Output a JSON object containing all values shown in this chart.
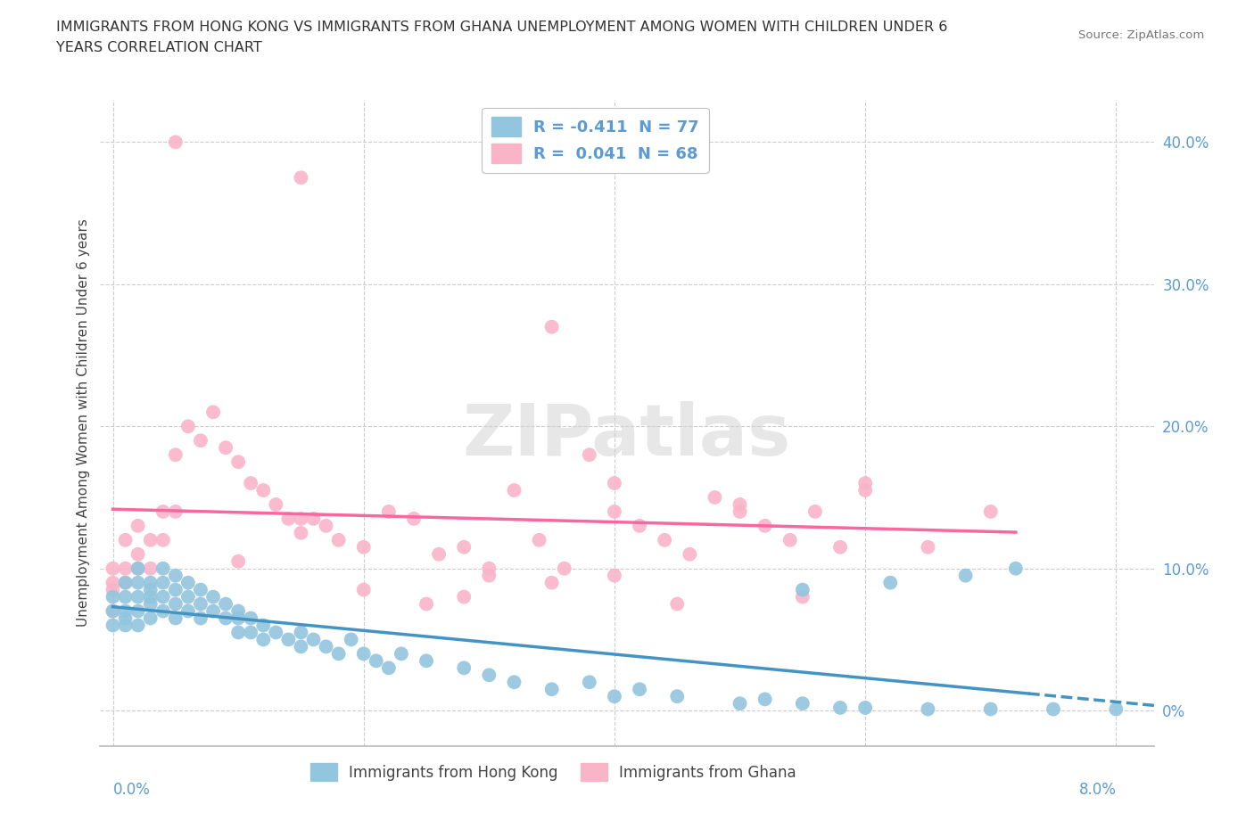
{
  "title_line1": "IMMIGRANTS FROM HONG KONG VS IMMIGRANTS FROM GHANA UNEMPLOYMENT AMONG WOMEN WITH CHILDREN UNDER 6",
  "title_line2": "YEARS CORRELATION CHART",
  "source": "Source: ZipAtlas.com",
  "ylabel": "Unemployment Among Women with Children Under 6 years",
  "color_hk": "#92c5de",
  "color_ghana": "#f9b4c8",
  "line_color_hk": "#4393c3",
  "line_color_ghana": "#f768a1",
  "r_hk": -0.411,
  "n_hk": 77,
  "r_ghana": 0.041,
  "n_ghana": 68,
  "hk_x": [
    0.0,
    0.0,
    0.0,
    0.001,
    0.001,
    0.001,
    0.001,
    0.001,
    0.002,
    0.002,
    0.002,
    0.002,
    0.002,
    0.003,
    0.003,
    0.003,
    0.003,
    0.003,
    0.004,
    0.004,
    0.004,
    0.004,
    0.005,
    0.005,
    0.005,
    0.005,
    0.006,
    0.006,
    0.006,
    0.007,
    0.007,
    0.007,
    0.008,
    0.008,
    0.009,
    0.009,
    0.01,
    0.01,
    0.01,
    0.011,
    0.011,
    0.012,
    0.012,
    0.013,
    0.014,
    0.015,
    0.015,
    0.016,
    0.017,
    0.018,
    0.019,
    0.02,
    0.021,
    0.022,
    0.023,
    0.025,
    0.028,
    0.03,
    0.032,
    0.035,
    0.038,
    0.04,
    0.042,
    0.045,
    0.05,
    0.052,
    0.055,
    0.058,
    0.06,
    0.065,
    0.07,
    0.075,
    0.08,
    0.055,
    0.062,
    0.068,
    0.072
  ],
  "hk_y": [
    0.08,
    0.07,
    0.06,
    0.09,
    0.08,
    0.07,
    0.065,
    0.06,
    0.1,
    0.09,
    0.08,
    0.07,
    0.06,
    0.09,
    0.085,
    0.08,
    0.075,
    0.065,
    0.1,
    0.09,
    0.08,
    0.07,
    0.095,
    0.085,
    0.075,
    0.065,
    0.09,
    0.08,
    0.07,
    0.085,
    0.075,
    0.065,
    0.08,
    0.07,
    0.075,
    0.065,
    0.07,
    0.065,
    0.055,
    0.065,
    0.055,
    0.06,
    0.05,
    0.055,
    0.05,
    0.045,
    0.055,
    0.05,
    0.045,
    0.04,
    0.05,
    0.04,
    0.035,
    0.03,
    0.04,
    0.035,
    0.03,
    0.025,
    0.02,
    0.015,
    0.02,
    0.01,
    0.015,
    0.01,
    0.005,
    0.008,
    0.005,
    0.002,
    0.002,
    0.001,
    0.001,
    0.001,
    0.001,
    0.085,
    0.09,
    0.095,
    0.1
  ],
  "ghana_x": [
    0.0,
    0.0,
    0.0,
    0.0,
    0.001,
    0.001,
    0.001,
    0.002,
    0.002,
    0.002,
    0.003,
    0.003,
    0.004,
    0.004,
    0.005,
    0.005,
    0.006,
    0.007,
    0.008,
    0.009,
    0.01,
    0.011,
    0.012,
    0.013,
    0.014,
    0.015,
    0.016,
    0.017,
    0.018,
    0.02,
    0.022,
    0.024,
    0.026,
    0.028,
    0.03,
    0.032,
    0.034,
    0.036,
    0.038,
    0.04,
    0.042,
    0.044,
    0.046,
    0.048,
    0.05,
    0.052,
    0.054,
    0.056,
    0.058,
    0.06,
    0.035,
    0.028,
    0.04,
    0.015,
    0.01,
    0.02,
    0.025,
    0.03,
    0.04,
    0.05,
    0.06,
    0.065,
    0.07,
    0.055,
    0.045,
    0.035,
    0.015,
    0.005
  ],
  "ghana_y": [
    0.1,
    0.09,
    0.085,
    0.07,
    0.12,
    0.1,
    0.09,
    0.13,
    0.11,
    0.1,
    0.12,
    0.1,
    0.14,
    0.12,
    0.18,
    0.14,
    0.2,
    0.19,
    0.21,
    0.185,
    0.175,
    0.16,
    0.155,
    0.145,
    0.135,
    0.125,
    0.135,
    0.13,
    0.12,
    0.115,
    0.14,
    0.135,
    0.11,
    0.115,
    0.1,
    0.155,
    0.12,
    0.1,
    0.18,
    0.14,
    0.13,
    0.12,
    0.11,
    0.15,
    0.145,
    0.13,
    0.12,
    0.14,
    0.115,
    0.155,
    0.27,
    0.08,
    0.095,
    0.135,
    0.105,
    0.085,
    0.075,
    0.095,
    0.16,
    0.14,
    0.16,
    0.115,
    0.14,
    0.08,
    0.075,
    0.09,
    0.375,
    0.4
  ],
  "xlim": [
    -0.001,
    0.083
  ],
  "ylim": [
    -0.025,
    0.43
  ],
  "xticks": [
    0.0,
    0.02,
    0.04,
    0.06,
    0.08
  ],
  "yticks_right": [
    0.0,
    0.1,
    0.2,
    0.3,
    0.4
  ],
  "ytick_labels_right": [
    "0%",
    "10.0%",
    "20.0%",
    "30.0%",
    "40.0%"
  ],
  "axis_color": "#5b9bd5",
  "grid_color": "#cccccc",
  "watermark_text": "ZIPatlas",
  "legend1_label": "R = -0.411  N = 77",
  "legend2_label": "R =  0.041  N = 68",
  "bottom_legend1": "Immigrants from Hong Kong",
  "bottom_legend2": "Immigrants from Ghana"
}
